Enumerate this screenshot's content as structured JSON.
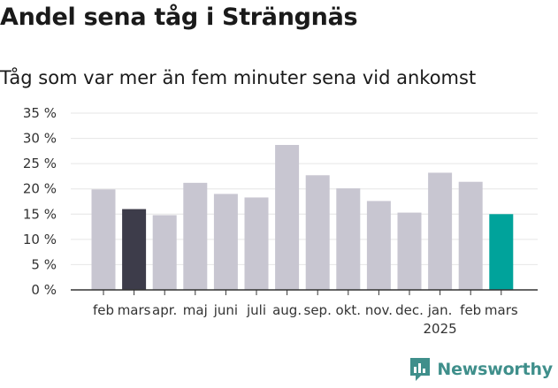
{
  "title": "Andel sena tåg i Strängnäs",
  "subtitle": "Tåg som var mer än fem minuter sena vid ankomst",
  "brand": {
    "name": "Newsworthy",
    "color": "#3f8f8b",
    "icon": "newsworthy-logo-icon"
  },
  "colors": {
    "default": "#c8c6d1",
    "highlight_dark": "#3d3c4a",
    "highlight_teal": "#00a39b",
    "grid": "#e6e6e6",
    "axis": "#333333"
  },
  "chart_data": {
    "type": "bar",
    "title": "Andel sena tåg i Strängnäs",
    "subtitle": "Tåg som var mer än fem minuter sena vid ankomst",
    "categories": [
      "feb",
      "mars",
      "apr.",
      "maj",
      "juni",
      "juli",
      "aug.",
      "sep.",
      "okt.",
      "nov.",
      "dec.",
      "jan.",
      "feb",
      "mars"
    ],
    "year_label": {
      "text": "2025",
      "under_category_index": 11
    },
    "values": [
      19.9,
      16.0,
      14.8,
      21.2,
      19.0,
      18.3,
      28.7,
      22.7,
      20.1,
      17.6,
      15.3,
      23.2,
      21.4,
      15.0
    ],
    "bar_color_keys": [
      "default",
      "highlight_dark",
      "default",
      "default",
      "default",
      "default",
      "default",
      "default",
      "default",
      "default",
      "default",
      "default",
      "default",
      "highlight_teal"
    ],
    "yticks": [
      "0 %",
      "5 %",
      "10 %",
      "15 %",
      "20 %",
      "25 %",
      "30 %",
      "35 %"
    ],
    "ylim": [
      0,
      35
    ],
    "grid": true,
    "legend": false,
    "xlabel": "",
    "ylabel": ""
  }
}
